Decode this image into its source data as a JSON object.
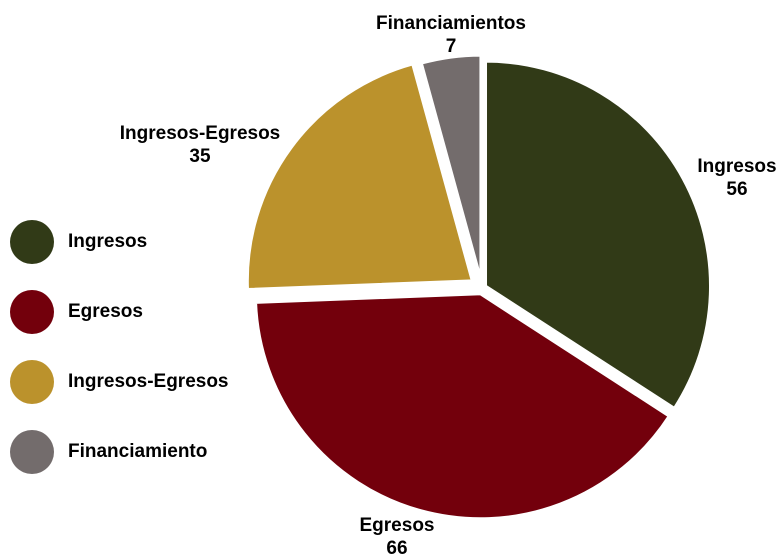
{
  "chart_data": {
    "type": "pie",
    "title": "",
    "slices": [
      {
        "name": "Ingresos",
        "label": "Ingresos",
        "value": 56,
        "value_label": "56",
        "color": "#313a17"
      },
      {
        "name": "Egresos",
        "label": "Egresos",
        "value": 66,
        "value_label": "66",
        "color": "#73000c"
      },
      {
        "name": "Ingresos-Egresos",
        "label": "Ingresos-Egresos",
        "value": 35,
        "value_label": "35",
        "color": "#bb922c"
      },
      {
        "name": "Financiamiento",
        "label": "Financiamientos",
        "value": 7,
        "value_label": "7",
        "color": "#736c6c"
      }
    ],
    "legend": {
      "position": "left",
      "items": [
        "Ingresos",
        "Egresos",
        "Ingresos-Egresos",
        "Financiamiento"
      ]
    },
    "start_angle": "12 o'clock",
    "direction": "clockwise",
    "exploded": true,
    "separator_color": "#ffffff"
  }
}
